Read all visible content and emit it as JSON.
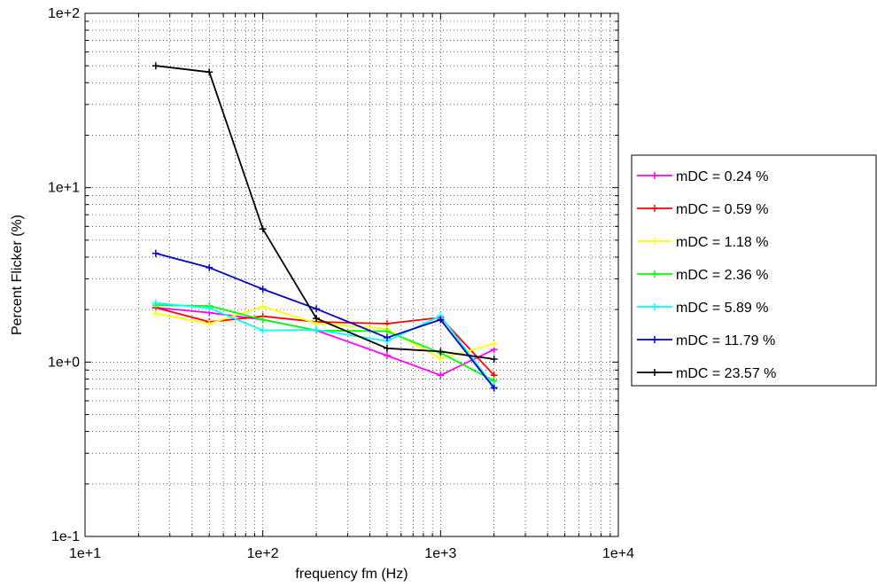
{
  "chart_data": {
    "type": "line",
    "xlabel": "frequency fm (Hz)",
    "ylabel": "Percent Flicker (%)",
    "xscale": "log",
    "yscale": "log",
    "xlim": [
      10,
      10000
    ],
    "ylim": [
      0.1,
      100
    ],
    "grid": true,
    "legend_position": "right",
    "x_tick_labels": [
      "1e+1",
      "1e+2",
      "1e+3",
      "1e+4"
    ],
    "y_tick_labels": [
      "1e-1",
      "1e+0",
      "1e+1",
      "1e+2"
    ],
    "x": [
      25,
      50,
      100,
      200,
      500,
      1000,
      2000
    ],
    "series": [
      {
        "name": "mDC = 0.24 %",
        "color": "#ff00ff",
        "values": [
          2.05,
          1.92,
          1.75,
          1.52,
          1.09,
          0.84,
          1.18
        ]
      },
      {
        "name": "mDC = 0.59 %",
        "color": "#ff0000",
        "values": [
          2.05,
          1.7,
          1.83,
          1.7,
          1.66,
          1.8,
          0.84
        ]
      },
      {
        "name": "mDC = 1.18 %",
        "color": "#ffff00",
        "values": [
          1.9,
          1.66,
          2.08,
          1.67,
          1.55,
          1.05,
          1.27
        ]
      },
      {
        "name": "mDC = 2.36 %",
        "color": "#00ff00",
        "values": [
          2.12,
          2.1,
          1.75,
          1.52,
          1.5,
          1.13,
          0.78
        ]
      },
      {
        "name": "mDC = 5.89 %",
        "color": "#00ffff",
        "values": [
          2.18,
          2.04,
          1.52,
          1.53,
          1.32,
          1.84,
          0.72
        ]
      },
      {
        "name": "mDC = 11.79 %",
        "color": "#0000cc",
        "values": [
          4.2,
          3.48,
          2.62,
          2.02,
          1.38,
          1.75,
          0.71
        ]
      },
      {
        "name": "mDC = 23.57 %",
        "color": "#000000",
        "values": [
          50,
          46,
          5.8,
          1.78,
          1.2,
          1.15,
          1.04
        ]
      }
    ]
  }
}
